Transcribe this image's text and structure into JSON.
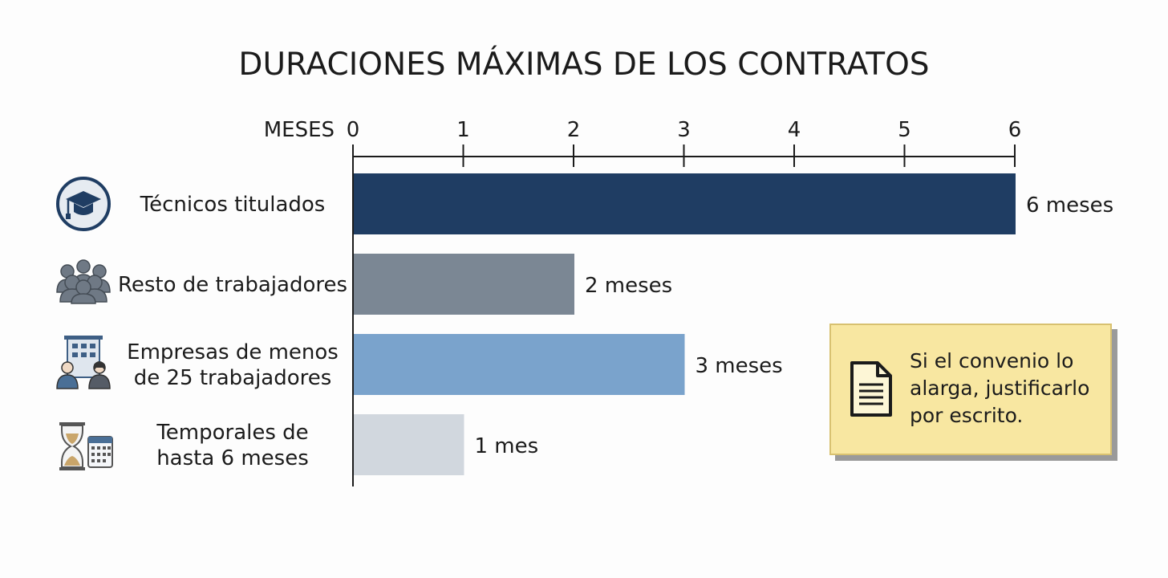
{
  "chart_data": {
    "type": "bar",
    "orientation": "horizontal",
    "title": "DURACIONES MÁXIMAS DE LOS CONTRATOS",
    "xlabel": "MESES",
    "xlim": [
      0,
      6
    ],
    "ticks": [
      0,
      1,
      2,
      3,
      4,
      5,
      6
    ],
    "categories": [
      {
        "lines": [
          "Técnicos titulados"
        ],
        "icon": "graduation-cap-icon"
      },
      {
        "lines": [
          "Resto de trabajadores"
        ],
        "icon": "people-group-icon"
      },
      {
        "lines": [
          "Empresas de menos",
          "de 25 trabajadores"
        ],
        "icon": "office-building-workers-icon"
      },
      {
        "lines": [
          "Temporales de",
          "hasta 6 meses"
        ],
        "icon": "hourglass-calendar-icon"
      }
    ],
    "values": [
      6,
      2,
      3,
      1
    ],
    "value_labels": [
      "6 meses",
      "2 meses",
      "3 meses",
      "1 mes"
    ],
    "colors": [
      "#1f3d63",
      "#7b8794",
      "#7aa3cc",
      "#d1d7de"
    ],
    "grid": false
  },
  "note": {
    "text_lines": [
      "Si el convenio lo",
      "alarga, justificarlo",
      "por escrito."
    ],
    "icon": "document-icon",
    "background": "#f8e7a1"
  }
}
